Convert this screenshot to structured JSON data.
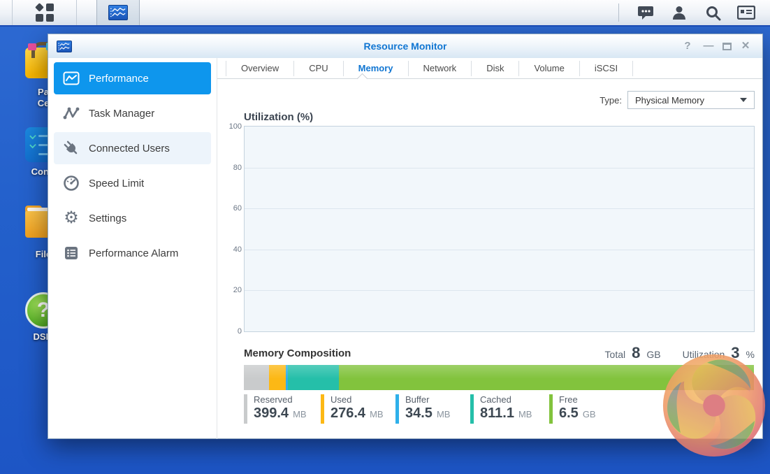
{
  "taskbar": {
    "right_icons": [
      "chat",
      "user",
      "search",
      "widgets"
    ]
  },
  "desktop": {
    "icons": [
      {
        "id": "package-center",
        "label_lines": [
          "Pa",
          "Ce"
        ]
      },
      {
        "id": "control-panel",
        "label_lines": [
          "Contr"
        ]
      },
      {
        "id": "file-station",
        "label_lines": [
          "File"
        ]
      },
      {
        "id": "dsm-help",
        "label_lines": [
          "DSM"
        ]
      }
    ]
  },
  "window": {
    "title": "Resource Monitor",
    "controls": {
      "help": "?",
      "minimize": "—",
      "close": "✕"
    }
  },
  "sidebar": {
    "items": [
      {
        "label": "Performance",
        "icon": "performance-chart-icon",
        "active": true
      },
      {
        "label": "Task Manager",
        "icon": "task-branch-icon"
      },
      {
        "label": "Connected Users",
        "icon": "plug-icon"
      },
      {
        "label": "Speed Limit",
        "icon": "gauge-icon"
      },
      {
        "label": "Settings",
        "icon": "gear-icon"
      },
      {
        "label": "Performance Alarm",
        "icon": "alarm-list-icon"
      }
    ]
  },
  "tabs": [
    {
      "label": "Overview"
    },
    {
      "label": "CPU"
    },
    {
      "label": "Memory",
      "active": true
    },
    {
      "label": "Network"
    },
    {
      "label": "Disk"
    },
    {
      "label": "Volume"
    },
    {
      "label": "iSCSI"
    }
  ],
  "controls": {
    "type_label": "Type:",
    "type_value": "Physical Memory"
  },
  "memory": {
    "section_title": "Memory Composition",
    "total_label": "Total",
    "total_value": "8",
    "total_unit": "GB",
    "utilization_label": "Utilization",
    "utilization_value": "3",
    "utilization_unit": "%",
    "total_mb": 8192,
    "segments": [
      {
        "label": "Reserved",
        "value": "399.4",
        "unit": "MB",
        "value_mb": 399.4,
        "color": "#c9cbcc"
      },
      {
        "label": "Used",
        "value": "276.4",
        "unit": "MB",
        "value_mb": 276.4,
        "color": "#fcb815"
      },
      {
        "label": "Buffer",
        "value": "34.5",
        "unit": "MB",
        "value_mb": 34.5,
        "color": "#2fb0ea"
      },
      {
        "label": "Cached",
        "value": "811.1",
        "unit": "MB",
        "value_mb": 811.1,
        "color": "#25bfa9"
      },
      {
        "label": "Free",
        "value": "6.5",
        "unit": "GB",
        "value_mb": 6656,
        "color": "#82c33d"
      }
    ]
  },
  "chart_data": [
    {
      "type": "line",
      "title": "Utilization (%)",
      "xlabel": "",
      "ylabel": "Utilization (%)",
      "ylim": [
        0,
        100
      ],
      "yticks": [
        0,
        20,
        40,
        60,
        80,
        100
      ],
      "yticks_desc": [
        100,
        80,
        60,
        40,
        20,
        0
      ],
      "grid": true,
      "series": []
    },
    {
      "type": "bar",
      "subtype": "stacked-horizontal",
      "title": "Memory Composition",
      "total": {
        "value": 8,
        "unit": "GB"
      },
      "utilization_percent": 3,
      "categories": [
        "Reserved",
        "Used",
        "Buffer",
        "Cached",
        "Free"
      ],
      "values_mb": [
        399.4,
        276.4,
        34.5,
        811.1,
        6656
      ],
      "value_labels": [
        "399.4 MB",
        "276.4 MB",
        "34.5 MB",
        "811.1 MB",
        "6.5 GB"
      ]
    }
  ]
}
